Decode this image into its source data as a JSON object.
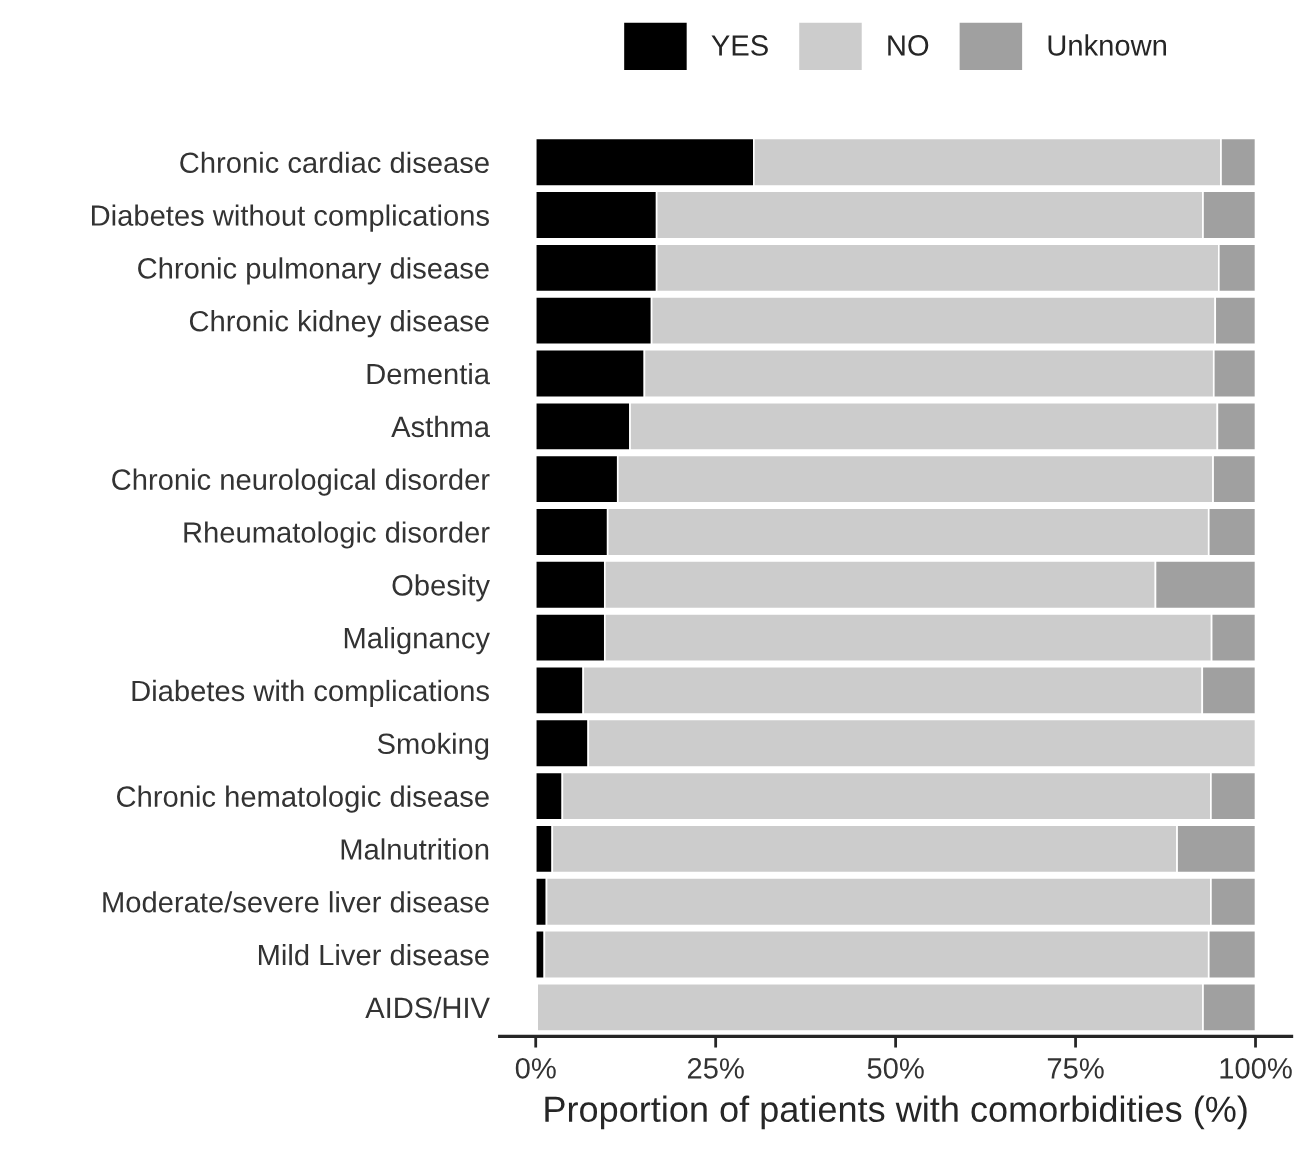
{
  "chart_data": {
    "type": "bar",
    "orientation": "horizontal",
    "stacked": true,
    "xlabel": "Proportion of patients with comorbidities (%)",
    "categories": [
      "Chronic cardiac disease",
      "Diabetes without complications",
      "Chronic pulmonary disease",
      "Chronic kidney disease",
      "Dementia",
      "Asthma",
      "Chronic neurological disorder",
      "Rheumatologic disorder",
      "Obesity",
      "Malignancy",
      "Diabetes with complications",
      "Smoking",
      "Chronic hematologic disease",
      "Malnutrition",
      "Moderate/severe liver disease",
      "Mild Liver disease",
      "AIDS/HIV"
    ],
    "series": [
      {
        "name": "YES",
        "color": "#000000",
        "values": [
          30.3,
          16.8,
          16.8,
          16.1,
          15.1,
          13.1,
          11.4,
          10.0,
          9.6,
          9.6,
          6.6,
          7.3,
          3.7,
          2.3,
          1.5,
          1.2,
          0.2
        ]
      },
      {
        "name": "NO",
        "color": "#cccccc",
        "values": [
          64.9,
          75.9,
          78.1,
          78.3,
          79.1,
          81.6,
          82.7,
          83.5,
          76.5,
          84.3,
          86.0,
          92.7,
          90.1,
          86.8,
          92.3,
          92.3,
          92.5
        ]
      },
      {
        "name": "Unknown",
        "color": "#a0a0a0",
        "values": [
          4.8,
          7.3,
          5.1,
          5.6,
          5.8,
          5.3,
          5.9,
          6.5,
          13.9,
          6.1,
          7.4,
          0,
          6.2,
          10.9,
          6.2,
          6.5,
          7.3
        ]
      }
    ],
    "xlim": [
      -5,
      105
    ],
    "xticks": [
      {
        "value": 0,
        "label": "0%"
      },
      {
        "value": 25,
        "label": "25%"
      },
      {
        "value": 50,
        "label": "50%"
      },
      {
        "value": 75,
        "label": "75%"
      },
      {
        "value": 100,
        "label": "100%"
      }
    ],
    "legend": "top",
    "grid": false
  }
}
